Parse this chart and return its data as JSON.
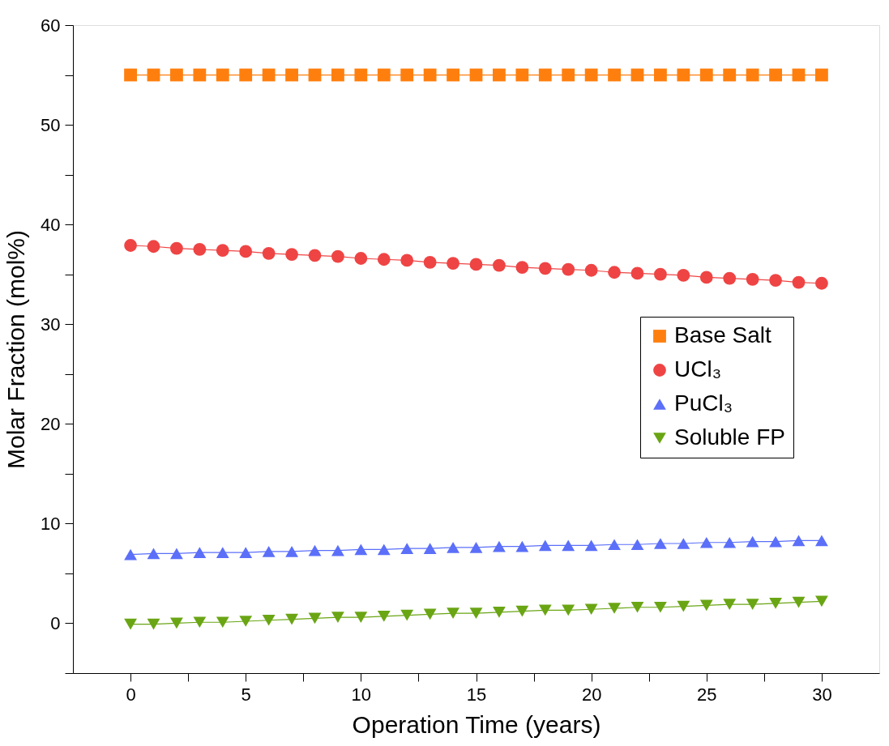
{
  "chart_data": {
    "type": "line",
    "xlabel": "Operation Time (years)",
    "ylabel": "Molar Fraction (mol%)",
    "x": [
      0,
      1,
      2,
      3,
      4,
      5,
      6,
      7,
      8,
      9,
      10,
      11,
      12,
      13,
      14,
      15,
      16,
      17,
      18,
      19,
      20,
      21,
      22,
      23,
      24,
      25,
      26,
      27,
      28,
      29,
      30
    ],
    "series": [
      {
        "name": "Base Salt",
        "color": "#ff7f0e",
        "marker": "square",
        "values": [
          55,
          55,
          55,
          55,
          55,
          55,
          55,
          55,
          55,
          55,
          55,
          55,
          55,
          55,
          55,
          55,
          55,
          55,
          55,
          55,
          55,
          55,
          55,
          55,
          55,
          55,
          55,
          55,
          55,
          55,
          55
        ]
      },
      {
        "name": "UCl₃",
        "color": "#ef4444",
        "marker": "circle",
        "values": [
          37.9,
          37.8,
          37.6,
          37.5,
          37.4,
          37.3,
          37.1,
          37.0,
          36.9,
          36.8,
          36.6,
          36.5,
          36.4,
          36.2,
          36.1,
          36.0,
          35.9,
          35.7,
          35.6,
          35.5,
          35.4,
          35.2,
          35.1,
          35.0,
          34.9,
          34.7,
          34.6,
          34.5,
          34.4,
          34.2,
          34.1
        ]
      },
      {
        "name": "PuCl₃",
        "color": "#5b6ff9",
        "marker": "triangle",
        "values": [
          6.9,
          7.0,
          7.0,
          7.1,
          7.1,
          7.1,
          7.2,
          7.2,
          7.3,
          7.3,
          7.4,
          7.4,
          7.5,
          7.5,
          7.6,
          7.6,
          7.7,
          7.7,
          7.8,
          7.8,
          7.8,
          7.9,
          7.9,
          8.0,
          8.0,
          8.1,
          8.1,
          8.2,
          8.2,
          8.3,
          8.3
        ]
      },
      {
        "name": "Soluble FP",
        "color": "#6aa514",
        "marker": "triangle-down",
        "values": [
          -0.1,
          -0.1,
          0.0,
          0.1,
          0.1,
          0.2,
          0.3,
          0.4,
          0.5,
          0.6,
          0.6,
          0.7,
          0.8,
          0.9,
          1.0,
          1.0,
          1.1,
          1.2,
          1.3,
          1.3,
          1.4,
          1.5,
          1.6,
          1.6,
          1.7,
          1.8,
          1.9,
          1.9,
          2.0,
          2.1,
          2.2
        ]
      }
    ],
    "xlim": [
      -2.5,
      32.5
    ],
    "xticks": [
      0,
      {
        "value": 2.5,
        "label": null
      },
      5,
      {
        "value": 7.5,
        "label": null
      },
      10,
      {
        "value": 12.5,
        "label": null
      },
      15,
      {
        "value": 17.5,
        "label": null
      },
      20,
      {
        "value": 22.5,
        "label": null
      },
      25,
      {
        "value": 27.5,
        "label": null
      },
      30
    ],
    "ylim": [
      -5,
      60
    ],
    "yticks": [
      {
        "value": -5,
        "label": null
      },
      0,
      {
        "value": 5,
        "label": null
      },
      10,
      {
        "value": 15,
        "label": null
      },
      20,
      {
        "value": 25,
        "label": null
      },
      30,
      {
        "value": 35,
        "label": null
      },
      40,
      {
        "value": 45,
        "label": null
      },
      50,
      {
        "value": 55,
        "label": null
      },
      60
    ],
    "grid": false,
    "legend": "right",
    "line_style": "solid"
  }
}
